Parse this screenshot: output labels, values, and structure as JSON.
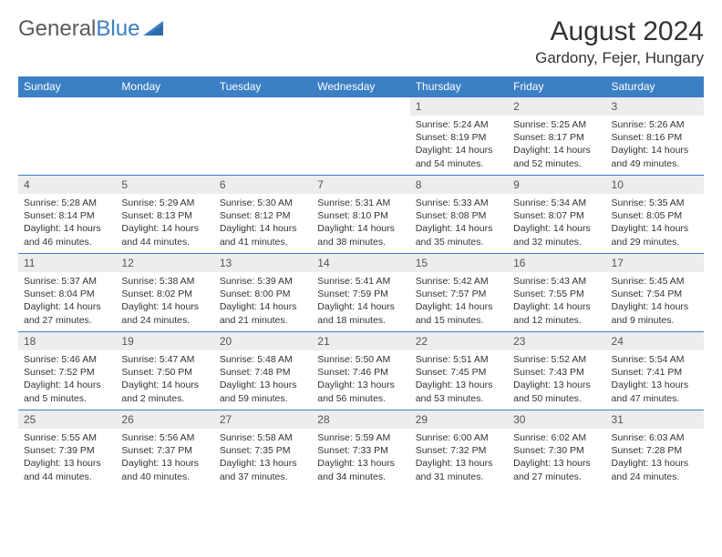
{
  "logo": {
    "text_general": "General",
    "text_blue": "Blue"
  },
  "header": {
    "month_title": "August 2024",
    "location": "Gardony, Fejer, Hungary"
  },
  "colors": {
    "accent": "#3b7fc4",
    "day_num_bg": "#ededed",
    "text": "#333333",
    "logo_gray": "#5a5a5a"
  },
  "weekdays": [
    "Sunday",
    "Monday",
    "Tuesday",
    "Wednesday",
    "Thursday",
    "Friday",
    "Saturday"
  ],
  "weeks": [
    [
      null,
      null,
      null,
      null,
      {
        "n": "1",
        "sr": "5:24 AM",
        "ss": "8:19 PM",
        "dl": "14 hours and 54 minutes."
      },
      {
        "n": "2",
        "sr": "5:25 AM",
        "ss": "8:17 PM",
        "dl": "14 hours and 52 minutes."
      },
      {
        "n": "3",
        "sr": "5:26 AM",
        "ss": "8:16 PM",
        "dl": "14 hours and 49 minutes."
      }
    ],
    [
      {
        "n": "4",
        "sr": "5:28 AM",
        "ss": "8:14 PM",
        "dl": "14 hours and 46 minutes."
      },
      {
        "n": "5",
        "sr": "5:29 AM",
        "ss": "8:13 PM",
        "dl": "14 hours and 44 minutes."
      },
      {
        "n": "6",
        "sr": "5:30 AM",
        "ss": "8:12 PM",
        "dl": "14 hours and 41 minutes."
      },
      {
        "n": "7",
        "sr": "5:31 AM",
        "ss": "8:10 PM",
        "dl": "14 hours and 38 minutes."
      },
      {
        "n": "8",
        "sr": "5:33 AM",
        "ss": "8:08 PM",
        "dl": "14 hours and 35 minutes."
      },
      {
        "n": "9",
        "sr": "5:34 AM",
        "ss": "8:07 PM",
        "dl": "14 hours and 32 minutes."
      },
      {
        "n": "10",
        "sr": "5:35 AM",
        "ss": "8:05 PM",
        "dl": "14 hours and 29 minutes."
      }
    ],
    [
      {
        "n": "11",
        "sr": "5:37 AM",
        "ss": "8:04 PM",
        "dl": "14 hours and 27 minutes."
      },
      {
        "n": "12",
        "sr": "5:38 AM",
        "ss": "8:02 PM",
        "dl": "14 hours and 24 minutes."
      },
      {
        "n": "13",
        "sr": "5:39 AM",
        "ss": "8:00 PM",
        "dl": "14 hours and 21 minutes."
      },
      {
        "n": "14",
        "sr": "5:41 AM",
        "ss": "7:59 PM",
        "dl": "14 hours and 18 minutes."
      },
      {
        "n": "15",
        "sr": "5:42 AM",
        "ss": "7:57 PM",
        "dl": "14 hours and 15 minutes."
      },
      {
        "n": "16",
        "sr": "5:43 AM",
        "ss": "7:55 PM",
        "dl": "14 hours and 12 minutes."
      },
      {
        "n": "17",
        "sr": "5:45 AM",
        "ss": "7:54 PM",
        "dl": "14 hours and 9 minutes."
      }
    ],
    [
      {
        "n": "18",
        "sr": "5:46 AM",
        "ss": "7:52 PM",
        "dl": "14 hours and 5 minutes."
      },
      {
        "n": "19",
        "sr": "5:47 AM",
        "ss": "7:50 PM",
        "dl": "14 hours and 2 minutes."
      },
      {
        "n": "20",
        "sr": "5:48 AM",
        "ss": "7:48 PM",
        "dl": "13 hours and 59 minutes."
      },
      {
        "n": "21",
        "sr": "5:50 AM",
        "ss": "7:46 PM",
        "dl": "13 hours and 56 minutes."
      },
      {
        "n": "22",
        "sr": "5:51 AM",
        "ss": "7:45 PM",
        "dl": "13 hours and 53 minutes."
      },
      {
        "n": "23",
        "sr": "5:52 AM",
        "ss": "7:43 PM",
        "dl": "13 hours and 50 minutes."
      },
      {
        "n": "24",
        "sr": "5:54 AM",
        "ss": "7:41 PM",
        "dl": "13 hours and 47 minutes."
      }
    ],
    [
      {
        "n": "25",
        "sr": "5:55 AM",
        "ss": "7:39 PM",
        "dl": "13 hours and 44 minutes."
      },
      {
        "n": "26",
        "sr": "5:56 AM",
        "ss": "7:37 PM",
        "dl": "13 hours and 40 minutes."
      },
      {
        "n": "27",
        "sr": "5:58 AM",
        "ss": "7:35 PM",
        "dl": "13 hours and 37 minutes."
      },
      {
        "n": "28",
        "sr": "5:59 AM",
        "ss": "7:33 PM",
        "dl": "13 hours and 34 minutes."
      },
      {
        "n": "29",
        "sr": "6:00 AM",
        "ss": "7:32 PM",
        "dl": "13 hours and 31 minutes."
      },
      {
        "n": "30",
        "sr": "6:02 AM",
        "ss": "7:30 PM",
        "dl": "13 hours and 27 minutes."
      },
      {
        "n": "31",
        "sr": "6:03 AM",
        "ss": "7:28 PM",
        "dl": "13 hours and 24 minutes."
      }
    ]
  ],
  "labels": {
    "sunrise": "Sunrise:",
    "sunset": "Sunset:",
    "daylight": "Daylight:"
  }
}
